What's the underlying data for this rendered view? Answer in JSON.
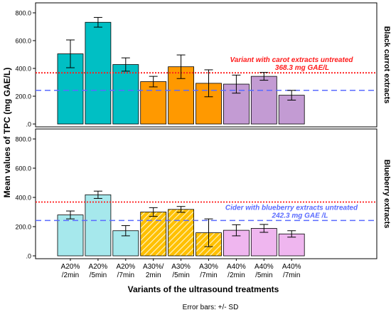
{
  "chart_data": {
    "type": "bar",
    "title": "",
    "ylabel": "Mean values of TPC (mg GAE/L)",
    "xlabel": "Variants of the ultrasound treatments",
    "footer": "Error bars: +/-  SD",
    "categories": [
      "A20%\n/2min",
      "A20%\n/5min",
      "A20%\n/7min",
      "A30%/\n2min",
      "A30%\n/5min",
      "A30%\n/7min",
      "A40%\n/2min",
      "A40%\n/5min",
      "A40%\n/7min"
    ],
    "ylim": [
      0,
      800
    ],
    "yticks": [
      0,
      200,
      400,
      600,
      800
    ],
    "ytick_labels": [
      ".0",
      "200.0",
      "400.0",
      "600.0",
      "800.0"
    ],
    "reference_lines": {
      "red": 368.3,
      "blue": 242.3
    },
    "panels": [
      {
        "label": "Black carrot extracts",
        "values": [
          505,
          732,
          428,
          305,
          412,
          293,
          287,
          343,
          207
        ],
        "sd": [
          100,
          35,
          48,
          38,
          85,
          97,
          65,
          28,
          35
        ],
        "annotation_red": [
          "Variant with carot extracts untreated",
          "368.3 mg GAE/L"
        ]
      },
      {
        "label": "Blueberry extracts",
        "values": [
          280,
          418,
          172,
          300,
          318,
          158,
          175,
          188,
          150
        ],
        "sd": [
          27,
          25,
          35,
          30,
          20,
          95,
          38,
          27,
          22
        ],
        "annotation_blue": [
          "Cider with blueberry extracts untreated",
          "242.3 mg GAE /L"
        ]
      }
    ],
    "colors": {
      "black_carrot": [
        "#00BFC4",
        "#00BFC4",
        "#00BFC4",
        "#FF9900",
        "#FF9900",
        "#FF9900",
        "#C39BD3",
        "#C39BD3",
        "#C39BD3"
      ],
      "blueberry": [
        "#A6E8EC",
        "#A6E8EC",
        "#A6E8EC",
        "#FFB020",
        "#FFB020",
        "#FFB020",
        "#EFB6EF",
        "#EFB6EF",
        "#EFB6EF"
      ],
      "blueberry_hatched": [
        false,
        false,
        false,
        true,
        true,
        true,
        false,
        false,
        false
      ],
      "red_line": "#FF1A1A",
      "blue_line": "#5A6BFF"
    },
    "grid": false,
    "legend": "none"
  }
}
